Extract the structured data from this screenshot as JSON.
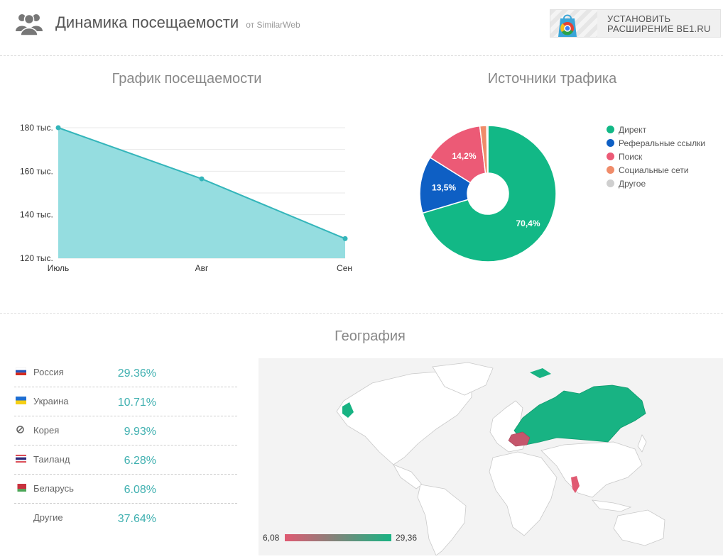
{
  "header": {
    "title": "Динамика посещаемости",
    "subtitle": "от SimilarWeb",
    "extension_line1": "УСТАНОВИТЬ",
    "extension_line2": "РАСШИРЕНИЕ BE1.RU"
  },
  "traffic_chart": {
    "title": "График посещаемости",
    "yticks": [
      "180 тыс.",
      "160 тыс.",
      "140 тыс.",
      "120 тыс."
    ],
    "xticks": [
      "Июль",
      "Авг",
      "Сен"
    ]
  },
  "sources_chart": {
    "title": "Источники трафика",
    "labels": [
      "70,4%",
      "13,5%",
      "14,2%"
    ],
    "legend": [
      "Директ",
      "Реферальные ссылки",
      "Поиск",
      "Социальные сети",
      "Другое"
    ]
  },
  "geography": {
    "title": "География",
    "rows": [
      {
        "country": "Россия",
        "pct": "29.36%"
      },
      {
        "country": "Украина",
        "pct": "10.71%"
      },
      {
        "country": "Корея",
        "pct": "9.93%"
      },
      {
        "country": "Таиланд",
        "pct": "6.28%"
      },
      {
        "country": "Беларусь",
        "pct": "6.08%"
      },
      {
        "country": "Другие",
        "pct": "37.64%"
      }
    ],
    "scale_min": "6,08",
    "scale_max": "29,36"
  },
  "colors": {
    "area": "#95dde0",
    "line": "#33b5ba",
    "direct": "#12b886",
    "referral": "#0e5fc4",
    "search": "#ec5a76",
    "social": "#f08c6a",
    "other": "#cfcfcf",
    "scale_low": "#e05a72",
    "scale_high": "#18b383"
  },
  "chart_data": [
    {
      "type": "area",
      "title": "График посещаемости",
      "x": [
        "Июль",
        "Авг",
        "Сен"
      ],
      "y": [
        180000,
        156500,
        129000
      ],
      "ylim": [
        120000,
        180000
      ],
      "yticks": [
        120000,
        140000,
        160000,
        180000
      ],
      "grid": true
    },
    {
      "type": "pie",
      "title": "Источники трафика",
      "categories": [
        "Директ",
        "Реферальные ссылки",
        "Поиск",
        "Социальные сети",
        "Другое"
      ],
      "values": [
        70.4,
        13.5,
        14.2,
        1.6,
        0.3
      ],
      "legend": "right"
    }
  ]
}
